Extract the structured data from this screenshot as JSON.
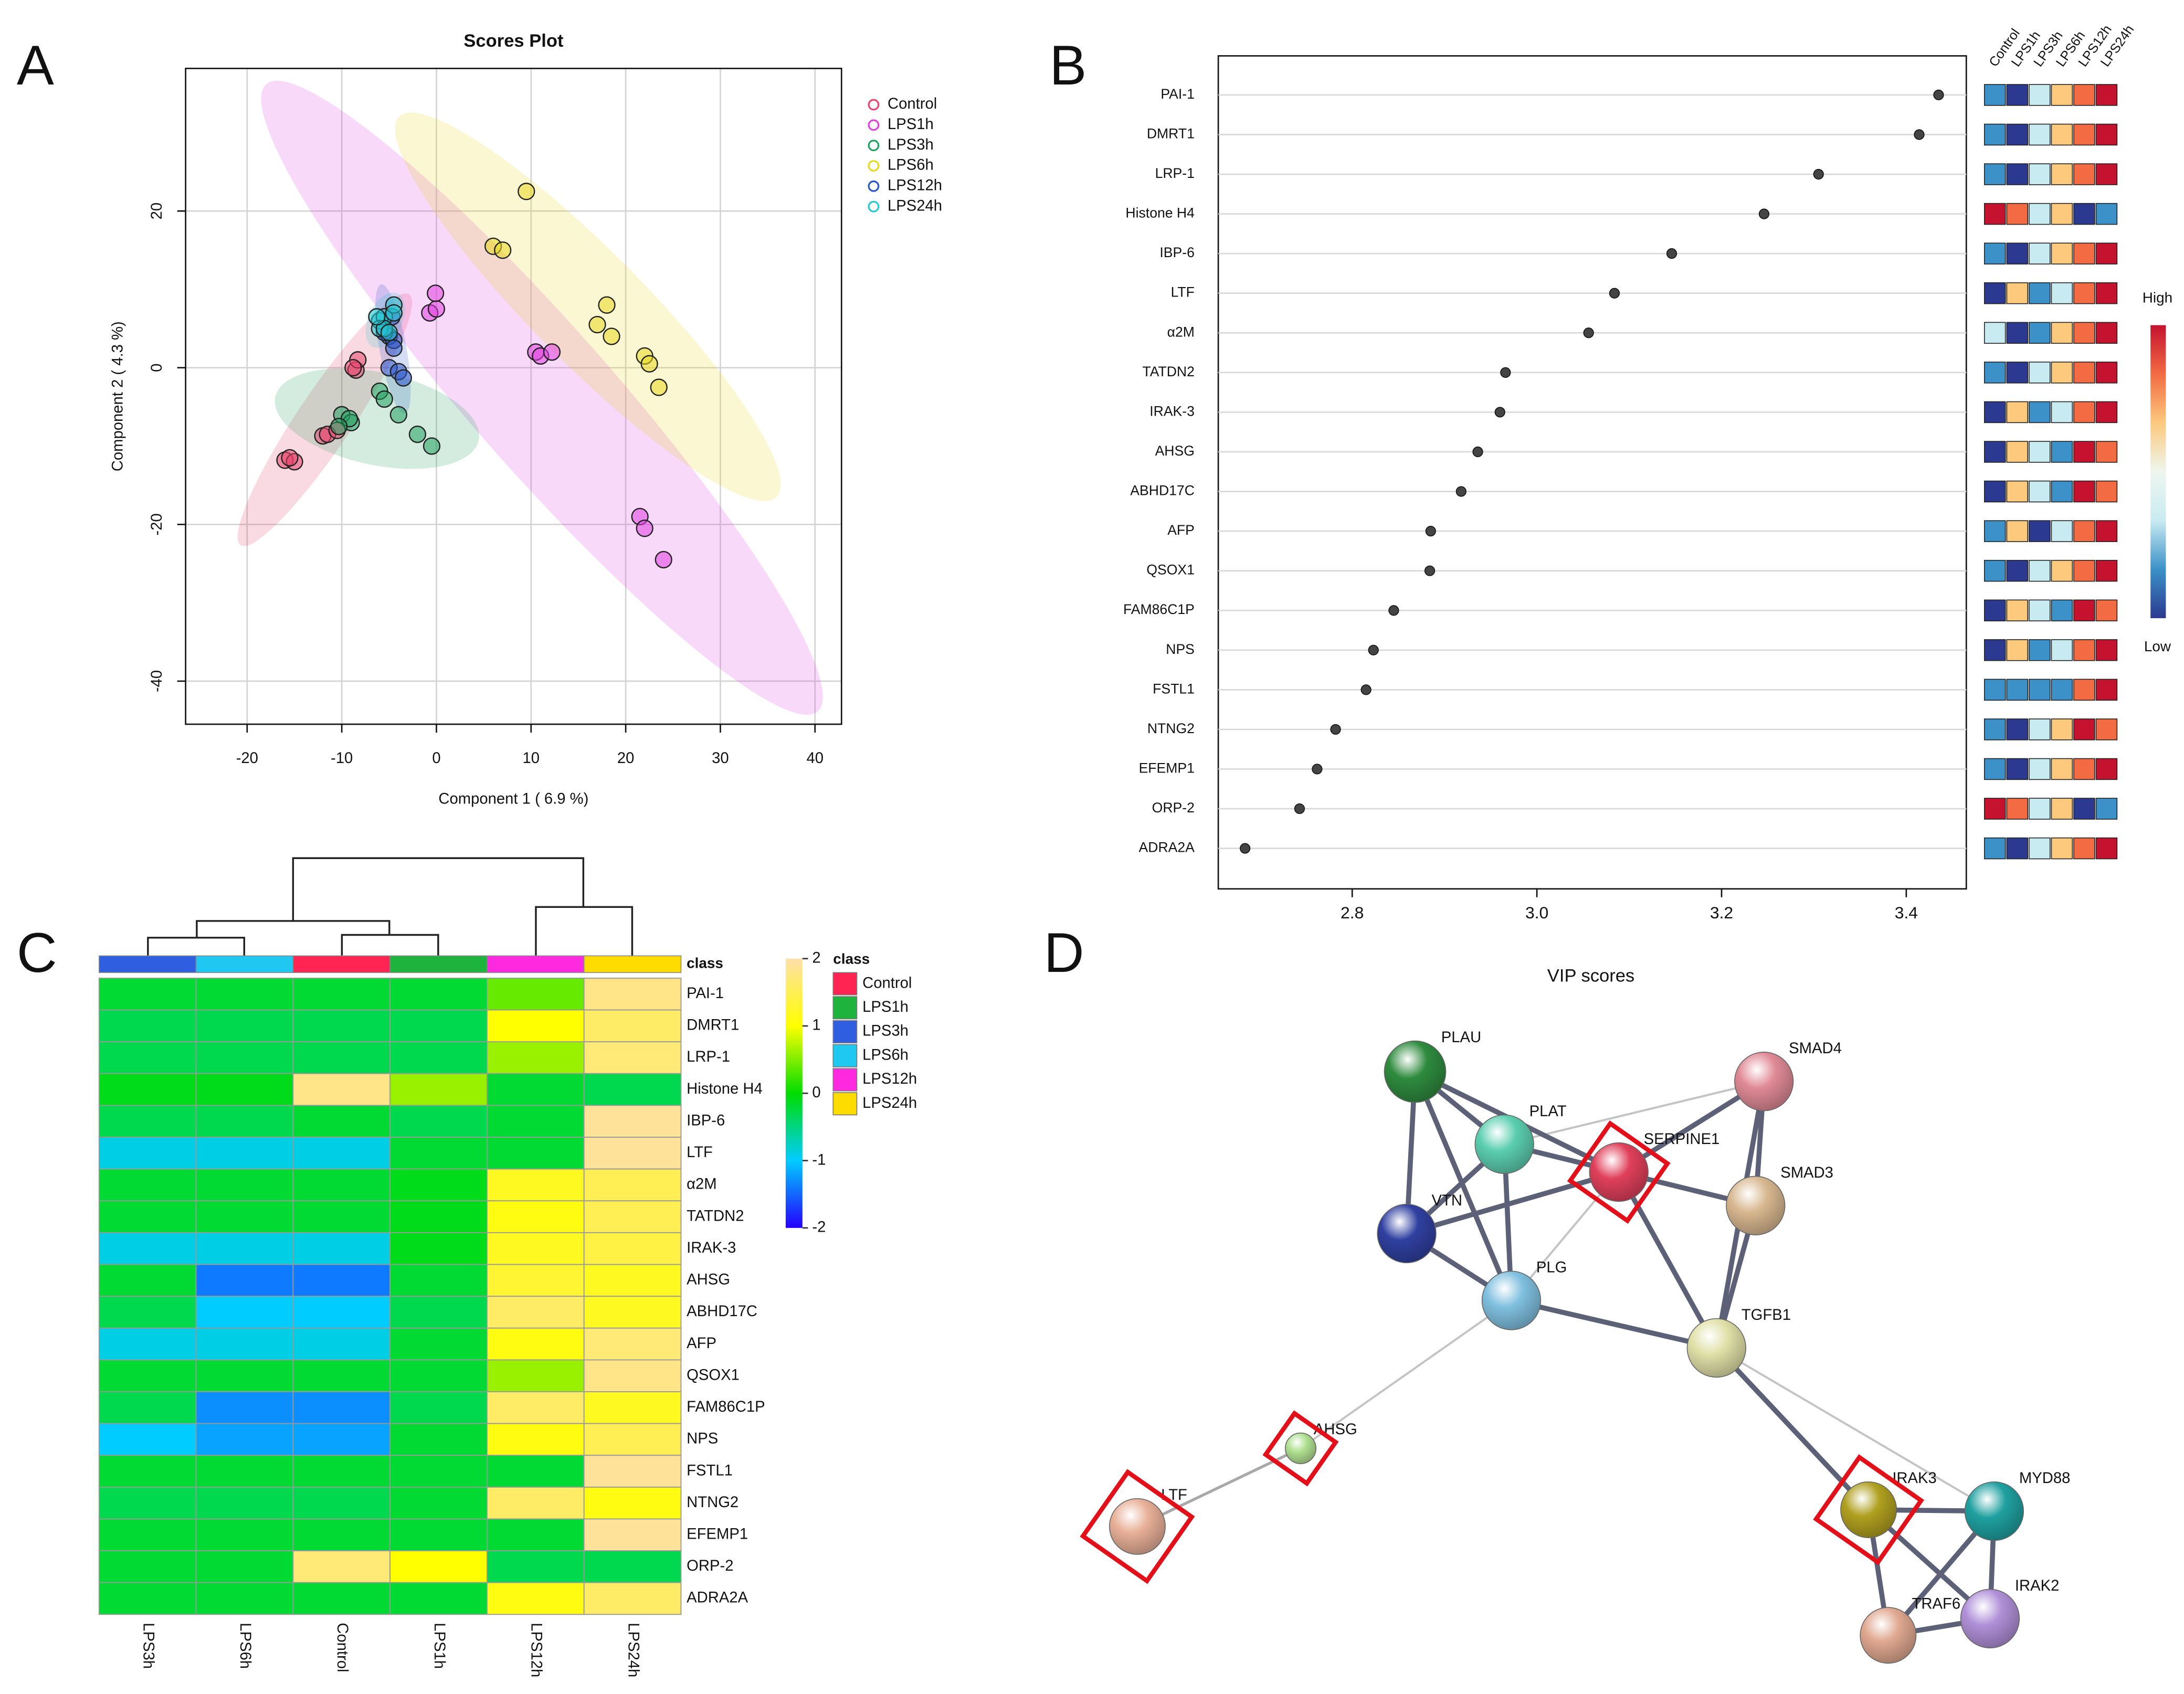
{
  "chart_data": [
    {
      "panel": "A",
      "type": "scatter",
      "title": "Scores Plot",
      "xlabel": "Component 1 ( 6.9 %)",
      "ylabel": "Component 2 ( 4.3 %)",
      "xlim": [
        -26.5,
        42.8
      ],
      "ylim": [
        -45.5,
        38.2
      ],
      "xticks": [
        -20,
        -10,
        0,
        10,
        20,
        30,
        40
      ],
      "yticks": [
        -40,
        -20,
        0,
        20
      ],
      "grid": true,
      "legend": "right",
      "series": [
        {
          "name": "Control",
          "color": "#e8446c",
          "x": [
            -16,
            -15,
            -15.5,
            -12,
            -11.5,
            -10.5,
            -8.5,
            -8.3,
            -8.8
          ],
          "values": [
            -11.8,
            -12,
            -11.5,
            -8.7,
            -8.5,
            -8,
            -0.3,
            1,
            0
          ]
        },
        {
          "name": "LPS1h",
          "color": "#e040e0",
          "x": [
            -0.7,
            0,
            -0.1,
            10.5,
            11,
            12.2,
            21.5,
            22,
            24
          ],
          "values": [
            7,
            7.5,
            9.5,
            2,
            1.5,
            2,
            -19,
            -20.5,
            -24.5
          ]
        },
        {
          "name": "LPS3h",
          "color": "#22a060",
          "x": [
            -10,
            -9,
            -9.2,
            -10.3,
            -6,
            -5.5,
            -4,
            -2,
            -0.5
          ],
          "values": [
            -6,
            -7,
            -6.5,
            -7.5,
            -3,
            -4,
            -6,
            -8.5,
            -10
          ]
        },
        {
          "name": "LPS6h",
          "color": "#e8d820",
          "x": [
            9.5,
            6,
            7,
            17,
            18,
            18.5,
            22,
            22.5,
            23.5
          ],
          "values": [
            22.5,
            15.5,
            15,
            5.5,
            8,
            4,
            1.5,
            0.5,
            -2.5
          ]
        },
        {
          "name": "LPS12h",
          "color": "#2a55c8",
          "x": [
            -5,
            -4.5,
            -5,
            -4,
            -3.5,
            -4.5,
            -5.5,
            -4.7
          ],
          "values": [
            4,
            3.5,
            0,
            -0.5,
            -1.3,
            2.5,
            4.5,
            6.5
          ]
        },
        {
          "name": "LPS24h",
          "color": "#22c8d4",
          "x": [
            -6,
            -5.5,
            -4.5,
            -6,
            -5.5,
            -4.5,
            -6.3,
            -5
          ],
          "values": [
            6,
            6.5,
            8,
            5,
            5,
            7,
            6.5,
            4.5
          ]
        }
      ]
    },
    {
      "panel": "B",
      "type": "dot",
      "xlabel": "VIP scores",
      "color": "#444444",
      "grid": true,
      "categories": [
        "PAI-1",
        "DMRT1",
        "LRP-1",
        "Histone H4",
        "IBP-6",
        "LTF",
        "α2M",
        "TATDN2",
        "IRAK-3",
        "AHSG",
        "ABHD17C",
        "AFP",
        "QSOX1",
        "FAM86C1P",
        "NPS",
        "FSTL1",
        "NTNG2",
        "EFEMP1",
        "ORP-2",
        "ADRA2A"
      ],
      "values": [
        3.435,
        3.414,
        3.305,
        3.246,
        3.146,
        3.084,
        3.056,
        2.966,
        2.96,
        2.936,
        2.918,
        2.885,
        2.884,
        2.845,
        2.823,
        2.815,
        2.782,
        2.762,
        2.743,
        2.684
      ],
      "xlim": [
        2.655,
        3.465
      ],
      "xticks": [
        2.8,
        {
          "value": 3,
          "label": "3.0"
        },
        3.2,
        3.4
      ],
      "heat_columns": [
        "Control",
        "LPS1h",
        "LPS3h",
        "LPS6h",
        "LPS12h",
        "LPS24h"
      ],
      "heat_colors": [
        [
          "#3b91c8",
          "#2b3a90",
          "#c8ebf2",
          "#fcc97d",
          "#f26b43",
          "#c4122f"
        ],
        [
          "#3b91c8",
          "#2b3a90",
          "#c8ebf2",
          "#fcc97d",
          "#f26b43",
          "#c4122f"
        ],
        [
          "#3b91c8",
          "#2b3a90",
          "#c8ebf2",
          "#fcc97d",
          "#f26b43",
          "#c4122f"
        ],
        [
          "#c4122f",
          "#f26b43",
          "#c8ebf2",
          "#fcc97d",
          "#2b3a90",
          "#3b91c8"
        ],
        [
          "#3b91c8",
          "#2b3a90",
          "#c8ebf2",
          "#fcc97d",
          "#f26b43",
          "#c4122f"
        ],
        [
          "#2b3a90",
          "#fcc97d",
          "#3b91c8",
          "#c8ebf2",
          "#f26b43",
          "#c4122f"
        ],
        [
          "#c8ebf2",
          "#2b3a90",
          "#3b91c8",
          "#fcc97d",
          "#f26b43",
          "#c4122f"
        ],
        [
          "#3b91c8",
          "#2b3a90",
          "#c8ebf2",
          "#fcc97d",
          "#f26b43",
          "#c4122f"
        ],
        [
          "#2b3a90",
          "#fcc97d",
          "#3b91c8",
          "#c8ebf2",
          "#f26b43",
          "#c4122f"
        ],
        [
          "#2b3a90",
          "#fcc97d",
          "#c8ebf2",
          "#3b91c8",
          "#c4122f",
          "#f26b43"
        ],
        [
          "#2b3a90",
          "#fcc97d",
          "#c8ebf2",
          "#3b91c8",
          "#c4122f",
          "#f26b43"
        ],
        [
          "#3b91c8",
          "#fcc97d",
          "#2b3a90",
          "#c8ebf2",
          "#f26b43",
          "#c4122f"
        ],
        [
          "#3b91c8",
          "#2b3a90",
          "#c8ebf2",
          "#fcc97d",
          "#f26b43",
          "#c4122f"
        ],
        [
          "#2b3a90",
          "#fcc97d",
          "#c8ebf2",
          "#3b91c8",
          "#c4122f",
          "#f26b43"
        ],
        [
          "#2b3a90",
          "#fcc97d",
          "#3b91c8",
          "#c8ebf2",
          "#f26b43",
          "#c4122f"
        ],
        [
          "#3b91c8",
          "#3b91c8",
          "#3b91c8",
          "#3b91c8",
          "#f26b43",
          "#c4122f"
        ],
        [
          "#3b91c8",
          "#2b3a90",
          "#c8ebf2",
          "#fcc97d",
          "#c4122f",
          "#f26b43"
        ],
        [
          "#3b91c8",
          "#2b3a90",
          "#c8ebf2",
          "#fcc97d",
          "#f26b43",
          "#c4122f"
        ],
        [
          "#c4122f",
          "#f26b43",
          "#c8ebf2",
          "#fcc97d",
          "#2b3a90",
          "#3b91c8"
        ],
        [
          "#3b91c8",
          "#2b3a90",
          "#c8ebf2",
          "#fcc97d",
          "#f26b43",
          "#c4122f"
        ]
      ],
      "colorbar": {
        "high": "High",
        "low": "Low",
        "colors": [
          "#c4122f",
          "#f26b43",
          "#fcc97d",
          "#eef6ee",
          "#c8ebf2",
          "#3b91c8",
          "#2b3a90"
        ]
      }
    },
    {
      "panel": "C",
      "type": "heatmap",
      "class_label": "class",
      "legend_title": "class",
      "columns": [
        "LPS3h",
        "LPS6h",
        "Control",
        "LPS1h",
        "LPS12h",
        "LPS24h"
      ],
      "rows": [
        "PAI-1",
        "DMRT1",
        "LRP-1",
        "Histone H4",
        "IBP-6",
        "LTF",
        "α2M",
        "TATDN2",
        "IRAK-3",
        "AHSG",
        "ABHD17C",
        "AFP",
        "QSOX1",
        "FAM86C1P",
        "NPS",
        "FSTL1",
        "NTNG2",
        "EFEMP1",
        "ORP-2",
        "ADRA2A"
      ],
      "values": [
        [
          -0.2,
          -0.2,
          -0.2,
          -0.2,
          0.4,
          1.8
        ],
        [
          -0.3,
          -0.3,
          -0.3,
          -0.3,
          1.0,
          1.6
        ],
        [
          -0.3,
          -0.3,
          -0.3,
          -0.3,
          0.6,
          1.7
        ],
        [
          -0.1,
          -0.1,
          1.8,
          0.6,
          -0.2,
          -0.3
        ],
        [
          -0.3,
          -0.3,
          -0.2,
          -0.3,
          -0.2,
          1.9
        ],
        [
          -0.9,
          -0.9,
          -0.9,
          -0.2,
          -0.2,
          1.9
        ],
        [
          -0.2,
          -0.2,
          -0.2,
          -0.1,
          1.2,
          1.5
        ],
        [
          -0.2,
          -0.2,
          -0.2,
          -0.1,
          1.1,
          1.5
        ],
        [
          -0.9,
          -0.9,
          -0.9,
          -0.1,
          1.2,
          1.4
        ],
        [
          -0.2,
          -1.4,
          -1.4,
          -0.2,
          1.3,
          1.2
        ],
        [
          -0.3,
          -1.0,
          -1.0,
          -0.3,
          1.6,
          1.2
        ],
        [
          -0.9,
          -0.9,
          -0.9,
          -0.2,
          1.1,
          1.7
        ],
        [
          -0.2,
          -0.2,
          -0.2,
          -0.2,
          0.6,
          1.8
        ],
        [
          -0.3,
          -1.3,
          -1.3,
          -0.3,
          1.6,
          1.2
        ],
        [
          -1.0,
          -1.2,
          -1.2,
          -0.2,
          1.1,
          1.5
        ],
        [
          -0.2,
          -0.2,
          -0.2,
          -0.2,
          -0.2,
          1.9
        ],
        [
          -0.3,
          -0.3,
          -0.3,
          -0.2,
          1.6,
          1.1
        ],
        [
          -0.2,
          -0.2,
          -0.2,
          -0.2,
          -0.2,
          1.9
        ],
        [
          -0.2,
          -0.2,
          1.7,
          1.0,
          -0.3,
          -0.3
        ],
        [
          -0.2,
          -0.2,
          -0.2,
          -0.2,
          1.1,
          1.6
        ]
      ],
      "zlim": [
        -2,
        2
      ],
      "zticks": [
        -2,
        -1,
        0,
        1,
        2
      ],
      "colormap": [
        "#2400ff",
        "#00ccff",
        "#00dd00",
        "#ffff00",
        "#ffdfaa"
      ],
      "legend": [
        {
          "name": "Control",
          "color": "#ff2452"
        },
        {
          "name": "LPS1h",
          "color": "#1db33c"
        },
        {
          "name": "LPS3h",
          "color": "#2f5fe0"
        },
        {
          "name": "LPS6h",
          "color": "#1ec8f0"
        },
        {
          "name": "LPS12h",
          "color": "#ff2ae0"
        },
        {
          "name": "LPS24h",
          "color": "#ffdc00"
        }
      ]
    }
  ],
  "network": {
    "panel": "D",
    "nodes": [
      "PLAU",
      "PLAT",
      "SERPINE1",
      "SMAD4",
      "SMAD3",
      "VTN",
      "PLG",
      "TGFB1",
      "AHSG",
      "LTF",
      "IRAK3",
      "MYD88",
      "IRAK2",
      "TRAF6"
    ],
    "node_colors": [
      "#2e8b3e",
      "#5ccfb0",
      "#e0405a",
      "#e08a96",
      "#d8b890",
      "#3040a0",
      "#80c0e0",
      "#e0e0a8",
      "#b0e090",
      "#e8b098",
      "#b0a020",
      "#20a0a0",
      "#b090d8",
      "#e0a890"
    ]
  }
}
